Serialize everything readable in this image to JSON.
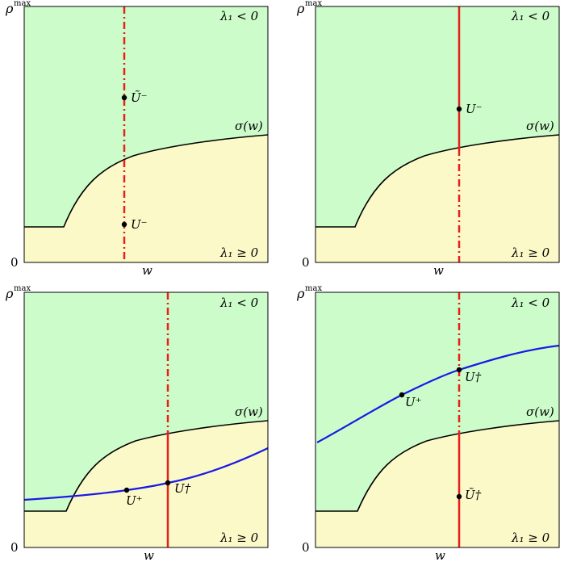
{
  "colors": {
    "upper_region": "#ccfcca",
    "lower_region": "#fcf9c9",
    "boundary": "#000000",
    "vertical_line": "#e8201c",
    "blue_curve": "#1a1ae6"
  },
  "panels": [
    {
      "y_axis_top": "ρ",
      "y_axis_top_sup": "max",
      "y_axis_zero": "0",
      "x_axis": "w",
      "region_upper": "λ₁ < 0",
      "region_lower": "λ₁ ≥ 0",
      "curve_label": "σ(w)",
      "points": [
        {
          "label": "Ũ⁻"
        },
        {
          "label": "U⁻"
        }
      ],
      "line_style": "solid above, dashed below curve"
    },
    {
      "y_axis_top": "ρ",
      "y_axis_top_sup": "max",
      "y_axis_zero": "0",
      "x_axis": "w",
      "region_upper": "λ₁ < 0",
      "region_lower": "λ₁ ≥ 0",
      "curve_label": "σ(w)",
      "points": [
        {
          "label": "U⁻"
        }
      ],
      "line_style": "solid above curve, dashed below"
    },
    {
      "y_axis_top": "ρ",
      "y_axis_top_sup": "max",
      "y_axis_zero": "0",
      "x_axis": "w",
      "region_upper": "λ₁ < 0",
      "region_lower": "λ₁ ≥ 0",
      "curve_label": "σ(w)",
      "points": [
        {
          "label": "U⁺"
        },
        {
          "label": "U†"
        }
      ],
      "line_style": "dashed above, solid below"
    },
    {
      "y_axis_top": "ρ",
      "y_axis_top_sup": "max",
      "y_axis_zero": "0",
      "x_axis": "w",
      "region_upper": "λ₁ < 0",
      "region_lower": "λ₁ ≥ 0",
      "curve_label": "σ(w)",
      "points": [
        {
          "label": "U⁺"
        },
        {
          "label": "U†"
        },
        {
          "label": "Ũ†"
        }
      ],
      "line_style": "dashed above, solid below"
    }
  ]
}
